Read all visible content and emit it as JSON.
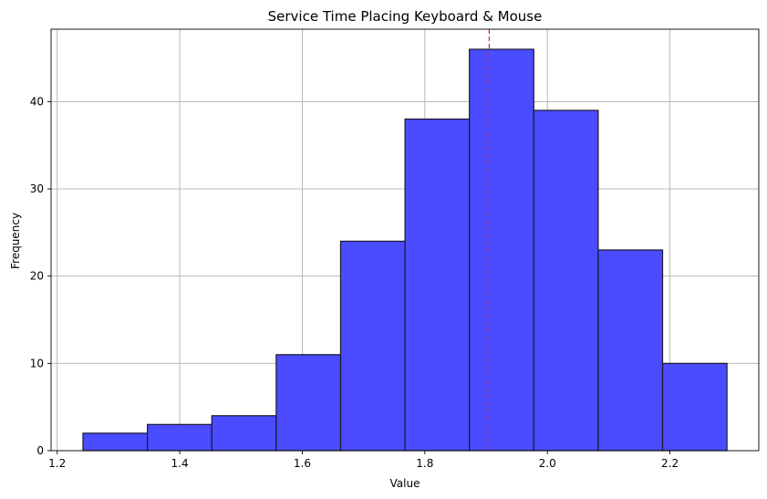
{
  "chart_data": {
    "type": "bar",
    "title": "Service Time Placing Keyboard & Mouse",
    "xlabel": "Value",
    "ylabel": "Frequency",
    "bin_edges": [
      1.2421,
      1.3472,
      1.4523,
      1.5574,
      1.6625,
      1.7676,
      1.8727,
      1.9778,
      2.0829,
      2.188,
      2.2931
    ],
    "values": [
      2,
      3,
      4,
      11,
      24,
      38,
      46,
      39,
      23,
      10
    ],
    "xlim": [
      1.19,
      2.345
    ],
    "ylim": [
      0,
      48.3
    ],
    "x_ticks": [
      "1.2",
      "1.4",
      "1.6",
      "1.8",
      "2.0",
      "2.2"
    ],
    "y_ticks": [
      "0",
      "10",
      "20",
      "30",
      "40"
    ],
    "mean_line": 1.905,
    "grid": true,
    "colors": {
      "bar": "#4b4bff",
      "edge": "#1a1a2e",
      "mean_line": "#e8251f"
    }
  }
}
